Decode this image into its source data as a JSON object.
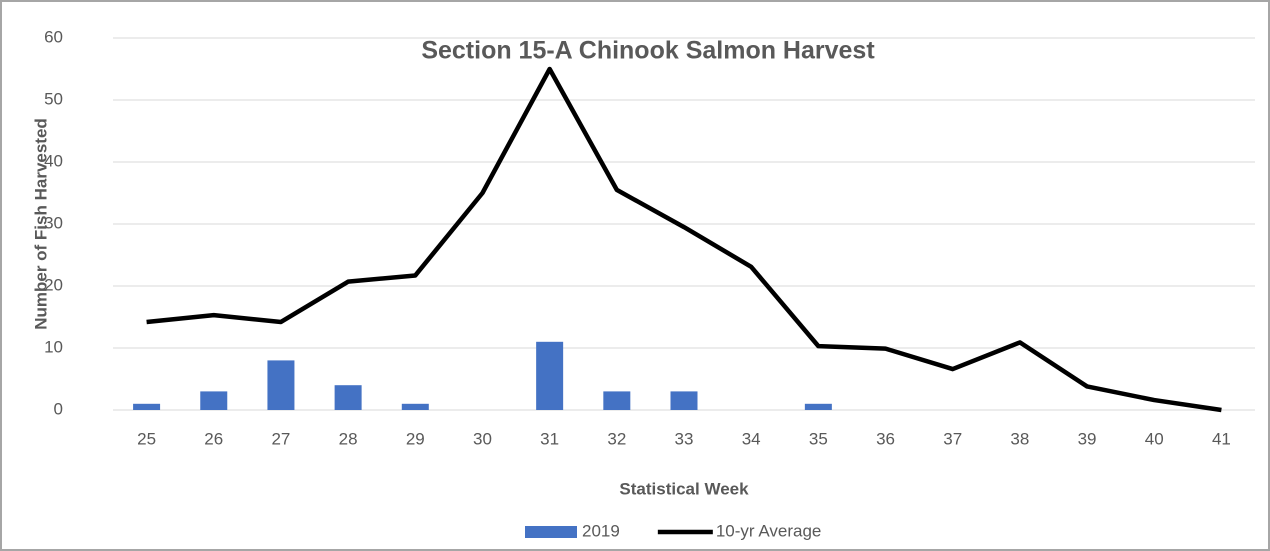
{
  "chart_data": {
    "type": "combo",
    "title": "Section 15-A Chinook Salmon Harvest",
    "x_label": "Statistical Week",
    "y_label": "Number of Fish Harvested",
    "categories": [
      "25",
      "26",
      "27",
      "28",
      "29",
      "30",
      "31",
      "32",
      "33",
      "34",
      "35",
      "36",
      "37",
      "38",
      "39",
      "40",
      "41"
    ],
    "series": [
      {
        "name": "2019",
        "type": "bar",
        "color": "#4472c4",
        "values": [
          1,
          3,
          8,
          4,
          1,
          0,
          11,
          3,
          3,
          0,
          1,
          0,
          0,
          0,
          0,
          0,
          0
        ]
      },
      {
        "name": "10-yr Average",
        "type": "line",
        "color": "#000000",
        "values": [
          14.2,
          15.3,
          14.2,
          20.7,
          21.7,
          35,
          55,
          35.5,
          29.5,
          23.1,
          10.3,
          9.9,
          6.6,
          10.9,
          3.8,
          1.6,
          0
        ]
      }
    ],
    "ylim": [
      0,
      60
    ],
    "yticks": [
      0,
      10,
      20,
      30,
      40,
      50,
      60
    ],
    "grid": true,
    "legend": "bottom"
  }
}
